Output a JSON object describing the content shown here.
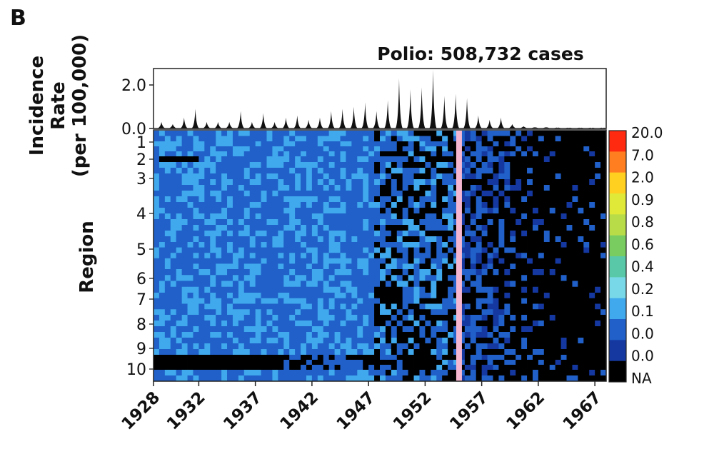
{
  "panel_label": "B",
  "chart_data": [
    {
      "type": "area",
      "title": "Polio: 508,732 cases",
      "ylabel": "Incidence Rate (per 100,000)",
      "ylabel_lines": [
        "Incidence",
        "Rate",
        "(per 100,000)"
      ],
      "yticks": [
        "0.0",
        "2.0"
      ],
      "ylim": [
        0,
        2.7
      ],
      "xlim": [
        1928,
        1968
      ],
      "grid": false,
      "series": [
        {
          "x": [
            1928,
            1929,
            1930,
            1931,
            1932,
            1933,
            1934,
            1935,
            1936,
            1937,
            1938,
            1939,
            1940,
            1941,
            1942,
            1943,
            1944,
            1945,
            1946,
            1947,
            1948,
            1949,
            1950,
            1951,
            1952,
            1953,
            1954,
            1955,
            1956,
            1957,
            1958,
            1959,
            1960,
            1961,
            1962,
            1963,
            1964,
            1965,
            1966,
            1967
          ],
          "values": [
            0.3,
            0.2,
            0.5,
            0.9,
            0.3,
            0.3,
            0.3,
            0.8,
            0.3,
            0.7,
            0.3,
            0.5,
            0.6,
            0.4,
            0.5,
            0.8,
            0.9,
            1.0,
            1.2,
            0.8,
            1.3,
            2.3,
            1.8,
            1.9,
            2.7,
            1.5,
            1.6,
            1.4,
            0.6,
            0.4,
            0.5,
            0.2,
            0.1,
            0.05,
            0.05,
            0.03,
            0.02,
            0.02,
            0.01,
            0.01
          ]
        }
      ]
    },
    {
      "type": "heatmap",
      "ylabel": "Region",
      "region_labels": [
        "1",
        "2",
        "3",
        "4",
        "5",
        "6",
        "7",
        "8",
        "9",
        "10"
      ],
      "xticks": [
        "1928",
        "1932",
        "1937",
        "1942",
        "1947",
        "1952",
        "1957",
        "1962",
        "1967"
      ],
      "xlim": [
        1928,
        1968
      ],
      "vaccine_marker_year": 1955,
      "legend_placement": "right",
      "colorbar": {
        "labels": [
          "20.0",
          "7.0",
          "2.0",
          "0.9",
          "0.8",
          "0.6",
          "0.4",
          "0.2",
          "0.1",
          "0.0",
          "0.0",
          "NA"
        ],
        "colors": [
          "#ff2a10",
          "#ff7f20",
          "#ffd020",
          "#e0e838",
          "#b8dc48",
          "#78cc60",
          "#58c8a8",
          "#78d8e8",
          "#40a8ec",
          "#2060c8",
          "#1438a0",
          "#000000"
        ]
      }
    }
  ]
}
